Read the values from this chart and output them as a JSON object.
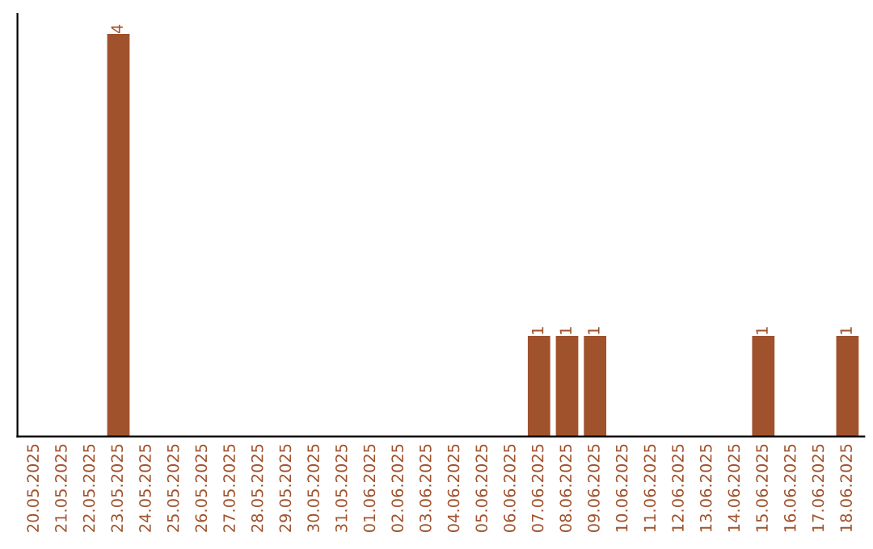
{
  "chart_data": {
    "type": "bar",
    "categories": [
      "20.05.2025",
      "21.05.2025",
      "22.05.2025",
      "23.05.2025",
      "24.05.2025",
      "25.05.2025",
      "26.05.2025",
      "27.05.2025",
      "28.05.2025",
      "29.05.2025",
      "30.05.2025",
      "31.05.2025",
      "01.06.2025",
      "02.06.2025",
      "03.06.2025",
      "04.06.2025",
      "05.06.2025",
      "06.06.2025",
      "07.06.2025",
      "08.06.2025",
      "09.06.2025",
      "10.06.2025",
      "11.06.2025",
      "12.06.2025",
      "13.06.2025",
      "14.06.2025",
      "15.06.2025",
      "16.06.2025",
      "17.06.2025",
      "18.06.2025"
    ],
    "values": [
      0,
      0,
      0,
      4,
      0,
      0,
      0,
      0,
      0,
      0,
      0,
      0,
      0,
      0,
      0,
      0,
      0,
      0,
      1,
      1,
      1,
      0,
      0,
      0,
      0,
      0,
      1,
      0,
      0,
      1
    ],
    "color": "#a0522d",
    "value_labels": [
      null,
      null,
      null,
      "4",
      null,
      null,
      null,
      null,
      null,
      null,
      null,
      null,
      null,
      null,
      null,
      null,
      null,
      null,
      "1",
      "1",
      "1",
      null,
      null,
      null,
      null,
      null,
      "1",
      null,
      null,
      "1"
    ],
    "tick_labels": "x",
    "grid": false,
    "legend": false
  }
}
